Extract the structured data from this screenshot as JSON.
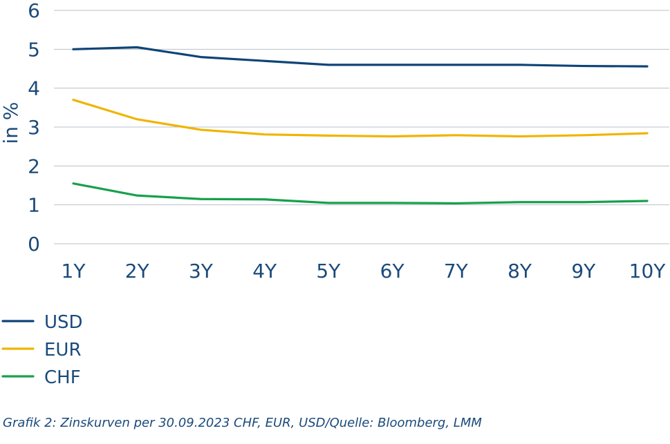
{
  "chart_data": {
    "type": "line",
    "categories": [
      "1Y",
      "2Y",
      "3Y",
      "4Y",
      "5Y",
      "6Y",
      "7Y",
      "8Y",
      "9Y",
      "10Y"
    ],
    "series": [
      {
        "name": "USD",
        "color": "#0e4477",
        "values": [
          5.0,
          5.05,
          4.8,
          4.7,
          4.6,
          4.6,
          4.6,
          4.6,
          4.57,
          4.56
        ]
      },
      {
        "name": "EUR",
        "color": "#f0b400",
        "values": [
          3.7,
          3.2,
          2.93,
          2.81,
          2.78,
          2.76,
          2.79,
          2.76,
          2.79,
          2.84
        ]
      },
      {
        "name": "CHF",
        "color": "#16a04c",
        "values": [
          1.55,
          1.24,
          1.15,
          1.14,
          1.05,
          1.05,
          1.04,
          1.07,
          1.07,
          1.1
        ]
      }
    ],
    "yticks": [
      "0",
      "1",
      "2",
      "3",
      "4",
      "5",
      "6"
    ],
    "ylim": [
      0,
      6
    ],
    "ylabel": "in %",
    "grid": true,
    "legend_position": "bottom-left"
  },
  "caption": "Grafik 2: Zinskurven per 30.09.2023 CHF, EUR, USD/Quelle: Bloomberg, LMM"
}
